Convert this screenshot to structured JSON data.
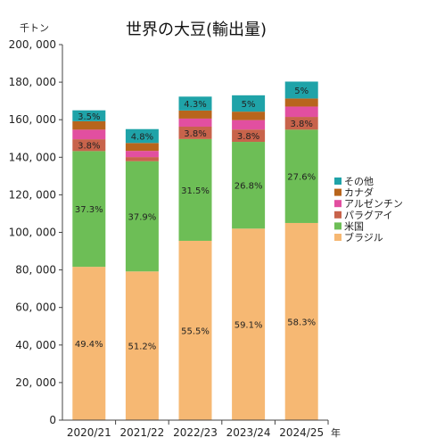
{
  "chart_data": {
    "type": "bar",
    "stacked": true,
    "title": "世界の大豆(輸出量)",
    "y_unit_label": "千トン",
    "x_unit_label": "年",
    "categories": [
      "2020/21",
      "2021/22",
      "2022/23",
      "2023/24",
      "2024/25"
    ],
    "ylim": [
      0,
      200000
    ],
    "yticks": [
      0,
      20000,
      40000,
      60000,
      80000,
      100000,
      120000,
      140000,
      160000,
      180000,
      200000
    ],
    "ytick_labels": [
      "0",
      "20, 000",
      "40, 000",
      "60, 000",
      "80, 000",
      "100, 000",
      "120, 000",
      "140, 000",
      "160, 000",
      "180, 000",
      "200, 000"
    ],
    "grid": false,
    "legend_position": "right",
    "series": [
      {
        "name": "ブラジル",
        "color": "#F6B873",
        "values": [
          81650,
          79200,
          95500,
          102000,
          105000
        ],
        "labels": [
          "49.4%",
          "51.2%",
          "55.5%",
          "59.1%",
          "58.3%"
        ]
      },
      {
        "name": "米国",
        "color": "#6DBE56",
        "values": [
          61650,
          58700,
          54200,
          46200,
          49700
        ],
        "labels": [
          "37.3%",
          "37.9%",
          "31.5%",
          "26.8%",
          "27.6%"
        ]
      },
      {
        "name": "パラグアイ",
        "color": "#C8634B",
        "values": [
          6300,
          2200,
          6600,
          6600,
          6800
        ],
        "labels": [
          "3.8%",
          "",
          "3.8%",
          "3.8%",
          "3.8%"
        ]
      },
      {
        "name": "アルゼンチン",
        "color": "#E24FA0",
        "values": [
          5100,
          3300,
          4300,
          5000,
          5500
        ],
        "labels": [
          "",
          "",
          "",
          "",
          ""
        ]
      },
      {
        "name": "カナダ",
        "color": "#B8651C",
        "values": [
          4500,
          4200,
          4300,
          4500,
          4300
        ],
        "labels": [
          "",
          "",
          "",
          "",
          ""
        ]
      },
      {
        "name": "その他",
        "color": "#1FA3A8",
        "values": [
          5800,
          7400,
          7400,
          8700,
          9000
        ],
        "labels": [
          "3.5%",
          "4.8%",
          "4.3%",
          "5%",
          "5%"
        ]
      }
    ]
  }
}
